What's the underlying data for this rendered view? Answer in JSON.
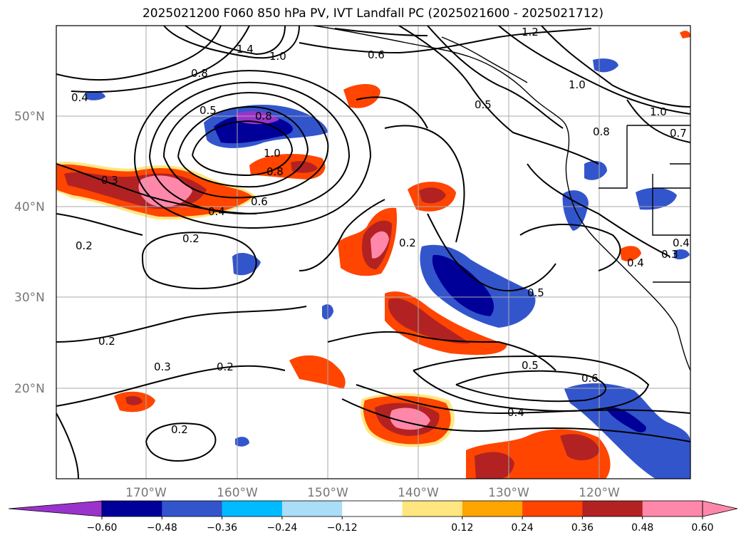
{
  "title": "2025021200 F060 850 hPa PV, IVT Landfall PC (2025021600 - 2025021712)",
  "lat_labels": [
    "50°N",
    "40°N",
    "30°N",
    "20°N"
  ],
  "lon_labels": [
    "170°W",
    "160°W",
    "150°W",
    "140°W",
    "130°W",
    "120°W"
  ],
  "contour_labels": [
    "1.4",
    "1.0",
    "0.8",
    "0.4",
    "0.6",
    "1.2",
    "0.5",
    "0.8",
    "1.0",
    "0.8",
    "0.3",
    "0.6",
    "0.4",
    "0.2",
    "0.2",
    "0.2",
    "0.2",
    "0.3",
    "0.2",
    "0.2",
    "0.5",
    "0.5",
    "0.6",
    "0.4",
    "1.0",
    "0.8",
    "1.0",
    "0.7",
    "0.4",
    "0.3",
    "0.4",
    "0.5"
  ],
  "colorbar": {
    "ticks": [
      "−0.60",
      "−0.48",
      "−0.36",
      "−0.24",
      "−0.12",
      "0.12",
      "0.24",
      "0.36",
      "0.48",
      "0.60"
    ],
    "colors": [
      "#9933cc",
      "#000099",
      "#3355cc",
      "#00bbff",
      "#aaddf7",
      "#ffffff",
      "#ffe680",
      "#ffa500",
      "#ff4500",
      "#b22222",
      "#ff88aa",
      "#ff88aa"
    ]
  },
  "colors": {
    "neg_strong": "#000099",
    "neg_mid": "#3355cc",
    "neg_light": "#00bbff",
    "neg_purple": "#9933cc",
    "pos_orange": "#ff4500",
    "pos_red": "#b22222",
    "pos_pink": "#ff88aa",
    "pos_yellow": "#ffe680",
    "grid": "#aaaaaa",
    "label_gray": "#777777"
  }
}
